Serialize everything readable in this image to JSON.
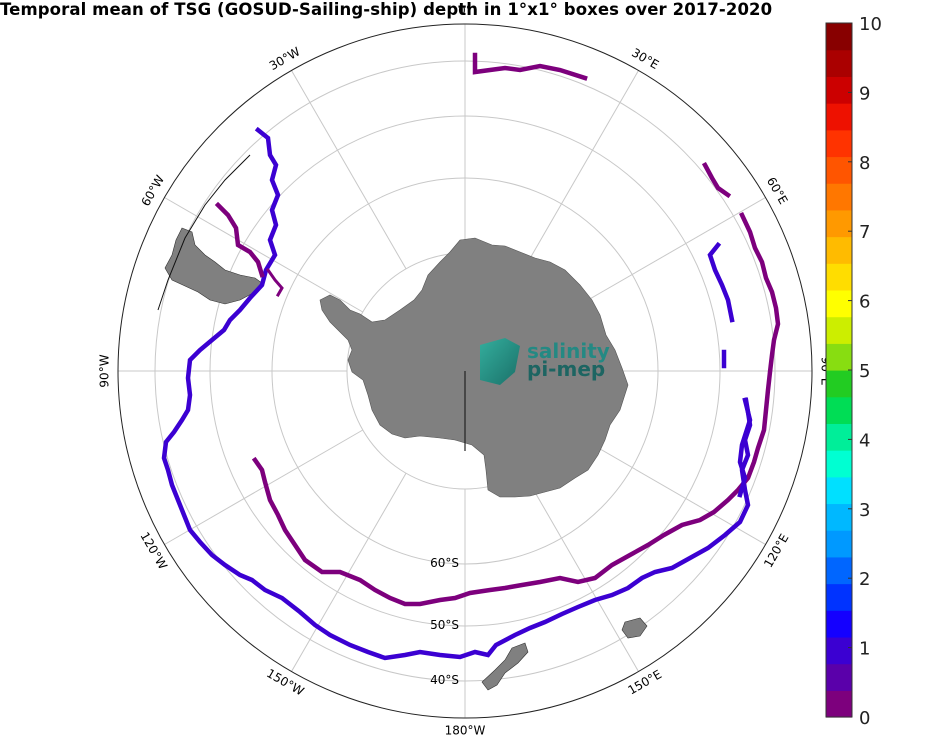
{
  "title": "Temporal mean of TSG (GOSUD-Sailing-ship) depth in 1°x1° boxes over 2017-2020",
  "map": {
    "projection": "south-polar-stereographic",
    "meridian_labels": [
      "0°",
      "30°E",
      "60°E",
      "90°E",
      "120°E",
      "150°E",
      "180°W",
      "150°W",
      "120°W",
      "90°W",
      "60°W",
      "30°W"
    ],
    "parallel_labels": [
      "60°S",
      "50°S",
      "40°S"
    ],
    "land_color": "#808080",
    "logo": {
      "line1": "salinity",
      "line2": "pi-mep"
    }
  },
  "colorbar": {
    "min": 0,
    "max": 10,
    "tick_labels": [
      "10",
      "9",
      "8",
      "7",
      "6",
      "5",
      "4",
      "3",
      "2",
      "1",
      "0"
    ],
    "colors": [
      "#7d007d",
      "#5a00aa",
      "#3b00d2",
      "#1400ff",
      "#0033ff",
      "#0066ff",
      "#0099ff",
      "#00b8ff",
      "#00e0ff",
      "#00ffd2",
      "#00ee99",
      "#00dd55",
      "#22cc22",
      "#88dd11",
      "#ccee00",
      "#ffff00",
      "#ffdd00",
      "#ffbb00",
      "#ff9900",
      "#ff7700",
      "#ff5500",
      "#ff3300",
      "#ee1100",
      "#cc0000",
      "#aa0000",
      "#880000"
    ]
  },
  "chart_data": {
    "type": "map",
    "variable": "TSG depth",
    "source": "GOSUD-Sailing-ship",
    "period": "2017-2020",
    "tracks": [
      {
        "value_class": 1,
        "color": "#3b00d2",
        "route": "Southern Ocean circumpolar loop at ~50°S"
      },
      {
        "value_class": 0,
        "color": "#7d007d",
        "route": "Southern Ocean loop at ~57-60°S"
      },
      {
        "value_class": 0,
        "color": "#7d007d",
        "route": "Weddell Sea / Antarctic Peninsula segment"
      }
    ]
  }
}
